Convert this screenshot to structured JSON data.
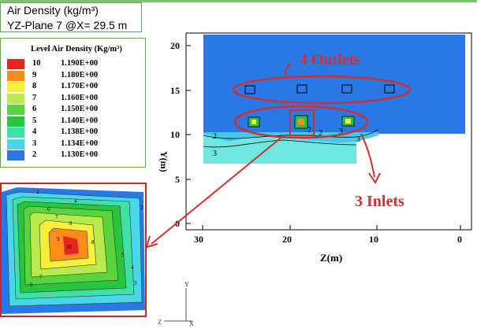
{
  "title": {
    "line1": "Air Density (kg/m³)",
    "line2": "YZ-Plane 7 @X= 29.5 m"
  },
  "legend": {
    "title": "Level Air Density (Kg/m³)",
    "levels": [
      {
        "level": "10",
        "value": "1.190E+00",
        "color": "#e8241c"
      },
      {
        "level": "9",
        "value": "1.180E+00",
        "color": "#ff8c1a"
      },
      {
        "level": "8",
        "value": "1.170E+00",
        "color": "#f5f03a"
      },
      {
        "level": "7",
        "value": "1.160E+00",
        "color": "#b8ea4a"
      },
      {
        "level": "6",
        "value": "1.150E+00",
        "color": "#59d43c"
      },
      {
        "level": "5",
        "value": "1.140E+00",
        "color": "#27c63d"
      },
      {
        "level": "4",
        "value": "1.138E+00",
        "color": "#3fe0a8"
      },
      {
        "level": "3",
        "value": "1.134E+00",
        "color": "#47d7e8"
      },
      {
        "level": "2",
        "value": "1.130E+00",
        "color": "#2a78e6"
      }
    ]
  },
  "plot": {
    "x_axis_label": "Z(m)",
    "y_axis_label": "Y(m)",
    "x_ticks": [
      "30",
      "20",
      "10",
      "0"
    ],
    "y_ticks": [
      "20",
      "15",
      "10",
      "5",
      "0"
    ],
    "contour_labels": [
      "2",
      "3",
      "2",
      "2",
      "3",
      "3"
    ]
  },
  "annotations": {
    "outlets": "4 Outlets",
    "inlets": "3 Inlets"
  },
  "zoom": {
    "contour_labels": [
      "2",
      "4",
      "6",
      "7",
      "8",
      "9",
      "10",
      "8",
      "7",
      "6",
      "5",
      "4",
      "3",
      "2"
    ]
  },
  "axes_triad": {
    "y": "Y",
    "z": "Z",
    "x": "X"
  },
  "colors": {
    "domain_blue": "#2a78e6",
    "annotation_red": "#d32f2f"
  }
}
